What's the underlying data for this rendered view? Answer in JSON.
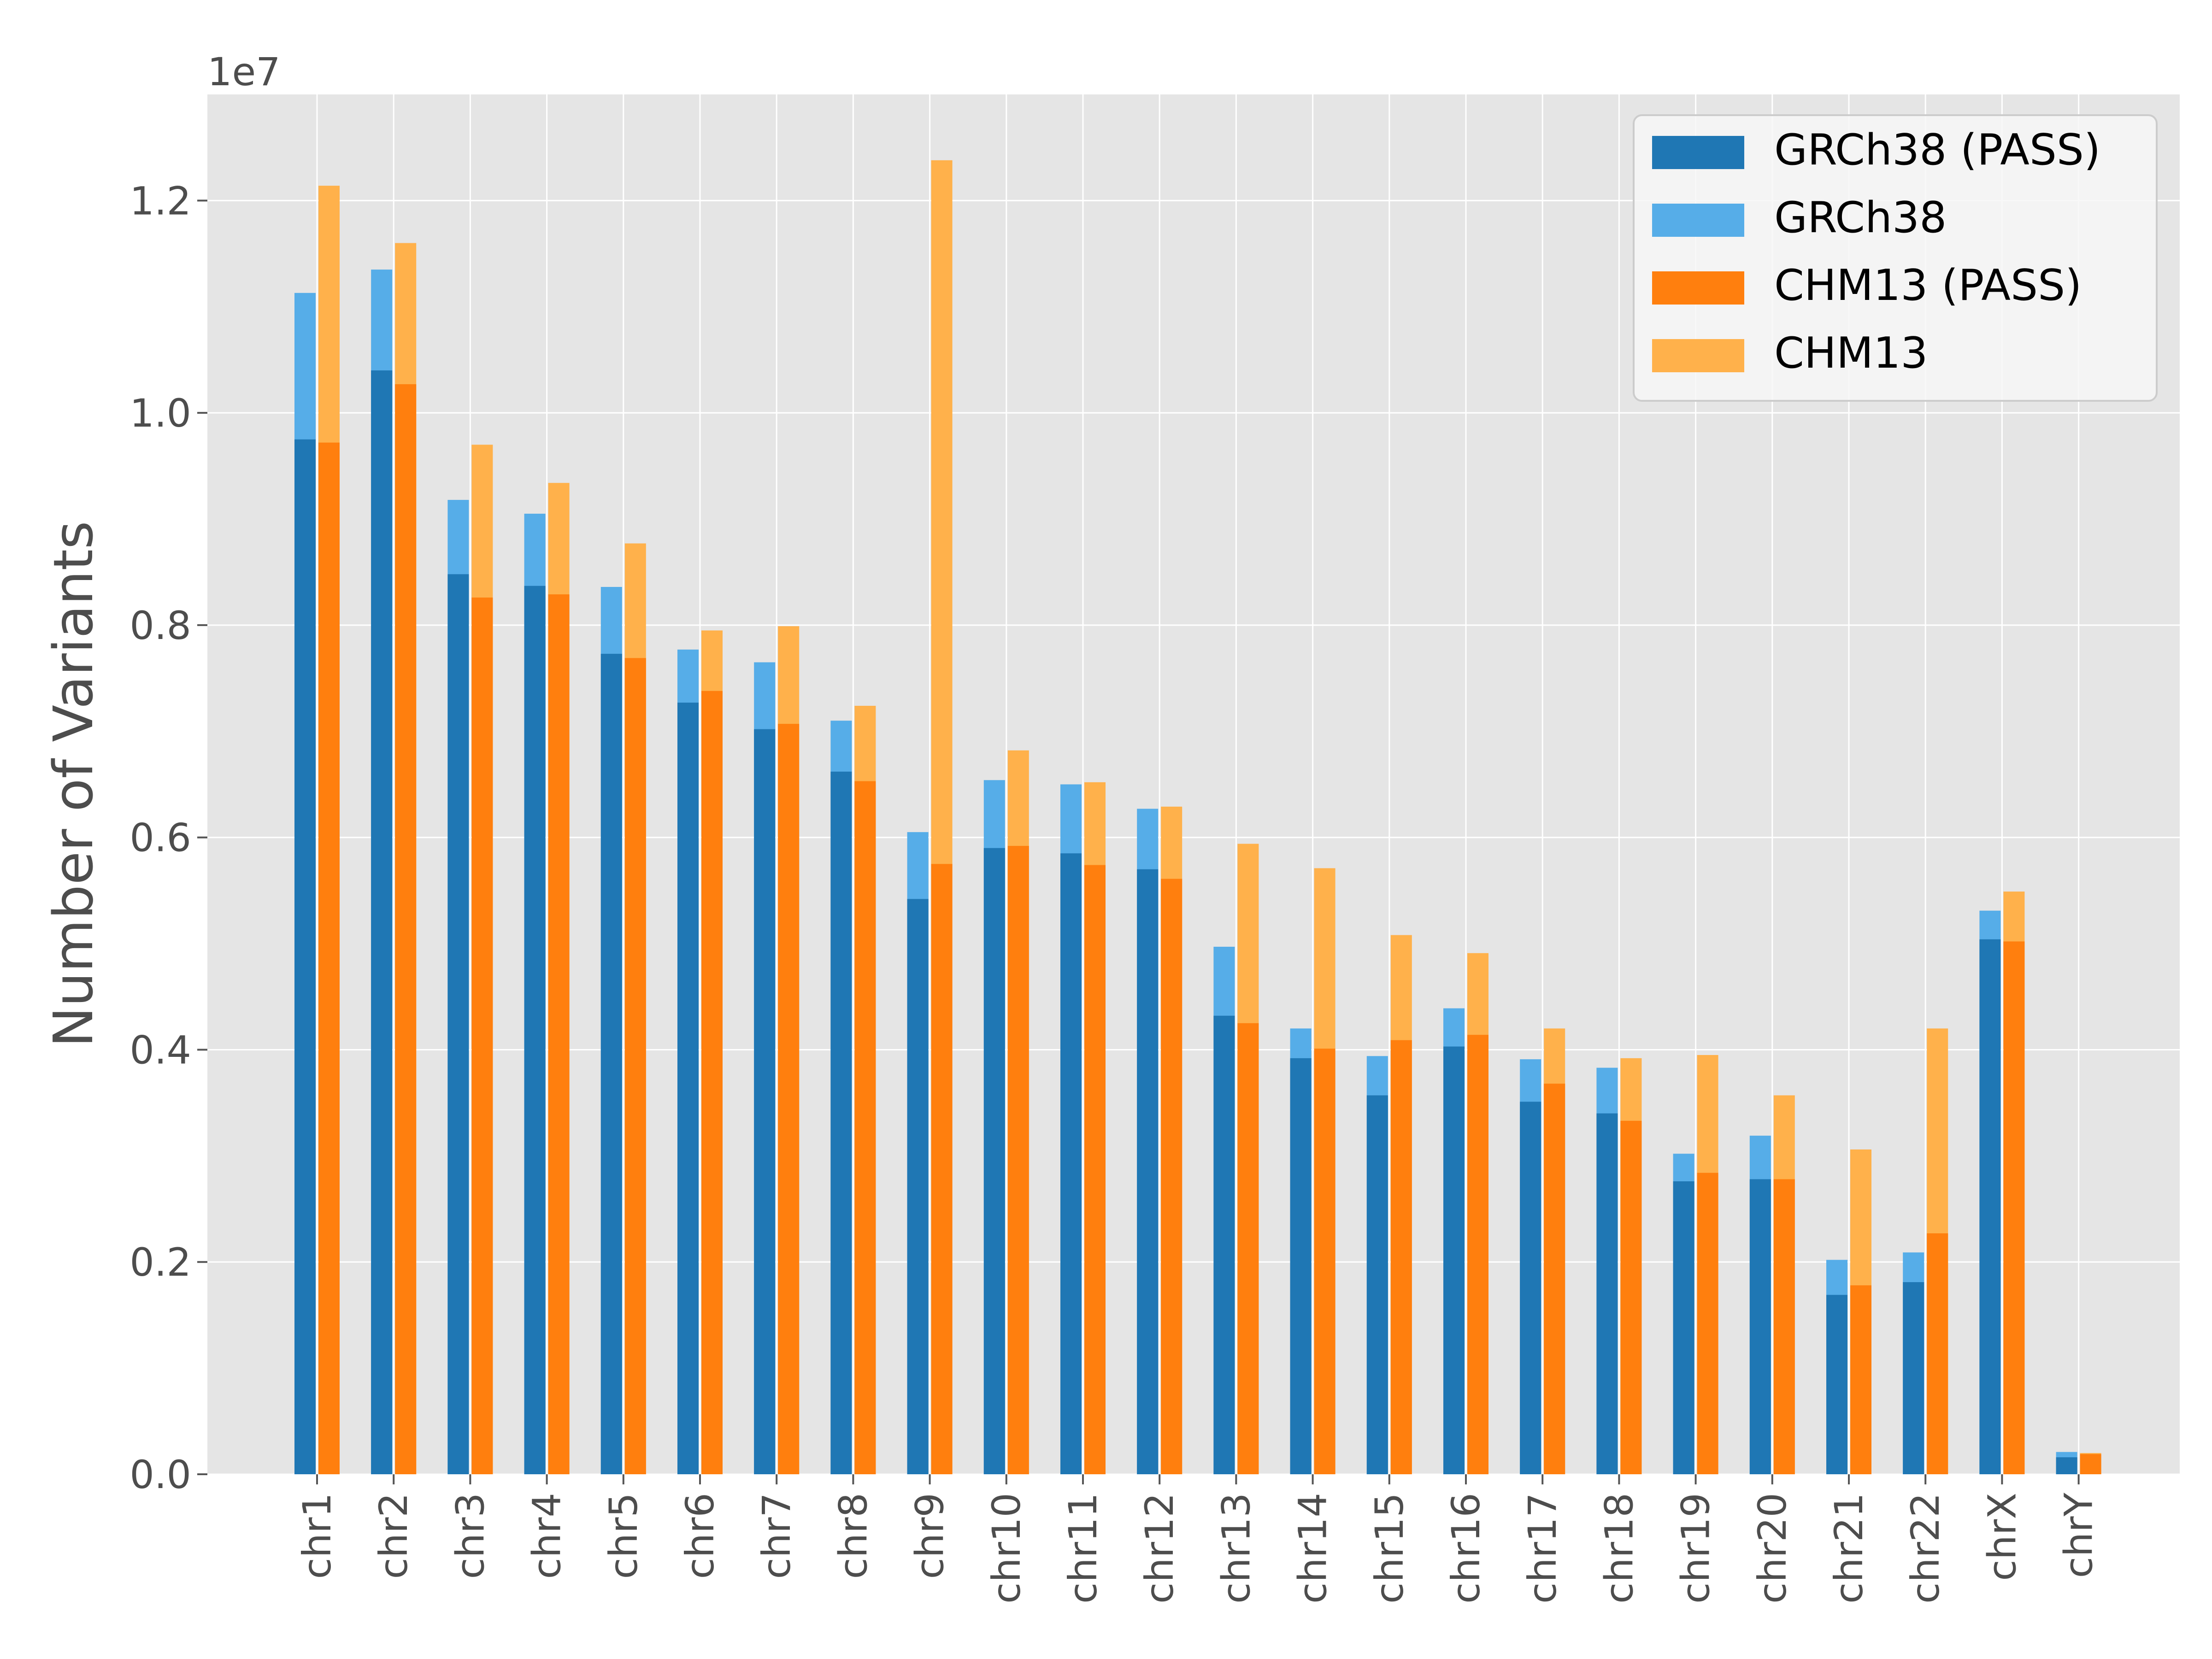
{
  "chart_data": {
    "type": "bar",
    "title": "",
    "xlabel": "",
    "ylabel": "Number of Variants",
    "y_offset_label": "1e7",
    "y_scale": 10000000,
    "ylim": [
      0,
      13000000
    ],
    "y_ticks": [
      0,
      2000000,
      4000000,
      6000000,
      8000000,
      10000000,
      12000000
    ],
    "y_tick_labels": [
      "0.0",
      "0.2",
      "0.4",
      "0.6",
      "0.8",
      "1.0",
      "1.2"
    ],
    "grid": true,
    "legend_position": "top-right",
    "categories": [
      "chr1",
      "chr2",
      "chr3",
      "chr4",
      "chr5",
      "chr6",
      "chr7",
      "chr8",
      "chr9",
      "chr10",
      "chr11",
      "chr12",
      "chr13",
      "chr14",
      "chr15",
      "chr16",
      "chr17",
      "chr18",
      "chr19",
      "chr20",
      "chr21",
      "chr22",
      "chrX",
      "chrY"
    ],
    "series": [
      {
        "name": "GRCh38 (PASS)",
        "color": "#1f77b4",
        "group": "GRCh38",
        "values": [
          9750000,
          10400000,
          8480000,
          8370000,
          7730000,
          7270000,
          7020000,
          6620000,
          5420000,
          5900000,
          5850000,
          5700000,
          4320000,
          3920000,
          3570000,
          4030000,
          3510000,
          3400000,
          2760000,
          2780000,
          1690000,
          1810000,
          5040000,
          160000
        ]
      },
      {
        "name": "GRCh38",
        "color": "#56ade8",
        "group": "GRCh38",
        "values": [
          11130000,
          11350000,
          9180000,
          9050000,
          8360000,
          7770000,
          7650000,
          7100000,
          6050000,
          6540000,
          6500000,
          6270000,
          4970000,
          4200000,
          3940000,
          4390000,
          3910000,
          3830000,
          3020000,
          3190000,
          2020000,
          2090000,
          5310000,
          210000
        ]
      },
      {
        "name": "CHM13 (PASS)",
        "color": "#ff7f0e",
        "group": "CHM13",
        "values": [
          9720000,
          10270000,
          8260000,
          8290000,
          7690000,
          7380000,
          7070000,
          6530000,
          5750000,
          5920000,
          5740000,
          5610000,
          4250000,
          4010000,
          4090000,
          4140000,
          3680000,
          3330000,
          2840000,
          2780000,
          1780000,
          2270000,
          5020000,
          190000
        ]
      },
      {
        "name": "CHM13",
        "color": "#ffb14b",
        "group": "CHM13",
        "values": [
          12140000,
          11600000,
          9700000,
          9340000,
          8770000,
          7950000,
          7990000,
          7240000,
          12380000,
          6820000,
          6520000,
          6290000,
          5940000,
          5710000,
          5080000,
          4910000,
          4200000,
          3920000,
          3950000,
          3570000,
          3060000,
          4200000,
          5490000,
          200000
        ]
      }
    ]
  }
}
